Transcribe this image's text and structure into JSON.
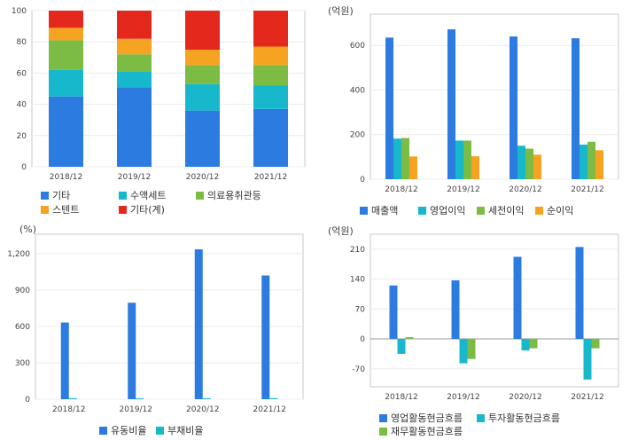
{
  "chart_data": [
    {
      "id": "c1",
      "type": "bar",
      "stacked": true,
      "categories": [
        "2018/12",
        "2019/12",
        "2020/12",
        "2021/12"
      ],
      "ylim": [
        0,
        100
      ],
      "yticks": [
        "0",
        "20",
        "40",
        "60",
        "80",
        "100"
      ],
      "series": [
        {
          "name": "기타",
          "color": "#2b7be0",
          "values": [
            45,
            51,
            36,
            37
          ]
        },
        {
          "name": "수액세트",
          "color": "#17b7cc",
          "values": [
            17,
            10,
            17,
            15
          ]
        },
        {
          "name": "의료용취관등",
          "color": "#7cbb44",
          "values": [
            19,
            11,
            12,
            13
          ]
        },
        {
          "name": "스텐트",
          "color": "#f6a321",
          "values": [
            8,
            10,
            10,
            12
          ]
        },
        {
          "name": "기타(계)",
          "color": "#e5281c",
          "values": [
            11,
            18,
            25,
            23
          ]
        }
      ]
    },
    {
      "id": "c2",
      "type": "bar",
      "unit": "(억원)",
      "categories": [
        "2018/12",
        "2019/12",
        "2020/12",
        "2021/12"
      ],
      "ylim": [
        0,
        740
      ],
      "yticks": [
        "0",
        "200",
        "400",
        "600"
      ],
      "series": [
        {
          "name": "매출액",
          "color": "#2b7be0",
          "values": [
            635,
            672,
            640,
            632
          ]
        },
        {
          "name": "영업이익",
          "color": "#17b7cc",
          "values": [
            182,
            173,
            150,
            155
          ]
        },
        {
          "name": "세전이익",
          "color": "#7cbb44",
          "values": [
            185,
            173,
            137,
            168
          ]
        },
        {
          "name": "순이익",
          "color": "#f6a321",
          "values": [
            102,
            103,
            110,
            130
          ]
        }
      ]
    },
    {
      "id": "c3",
      "type": "bar",
      "unit": "(%)",
      "categories": [
        "2018/12",
        "2019/12",
        "2020/12",
        "2021/12"
      ],
      "ylim": [
        0,
        1360
      ],
      "yticks": [
        "0",
        "300",
        "600",
        "900",
        "1,200"
      ],
      "series": [
        {
          "name": "유동비율",
          "color": "#2b7be0",
          "values": [
            632,
            795,
            1235,
            1020
          ]
        },
        {
          "name": "부채비율",
          "color": "#17b7cc",
          "values": [
            8,
            7,
            7,
            8
          ]
        }
      ]
    },
    {
      "id": "c4",
      "type": "bar",
      "unit": "(억원)",
      "categories": [
        "2018/12",
        "2019/12",
        "2020/12",
        "2021/12"
      ],
      "ylim": [
        -112,
        245
      ],
      "yticks": [
        "-70",
        "0",
        "70",
        "140",
        "210"
      ],
      "series": [
        {
          "name": "영업활동현금흐름",
          "color": "#2b7be0",
          "values": [
            125,
            137,
            192,
            215
          ]
        },
        {
          "name": "투자활동현금흐름",
          "color": "#17b7cc",
          "values": [
            -35,
            -57,
            -27,
            -95
          ]
        },
        {
          "name": "재무활동현금흐름",
          "color": "#7cbb44",
          "values": [
            4,
            -47,
            -22,
            -22
          ]
        }
      ]
    }
  ]
}
